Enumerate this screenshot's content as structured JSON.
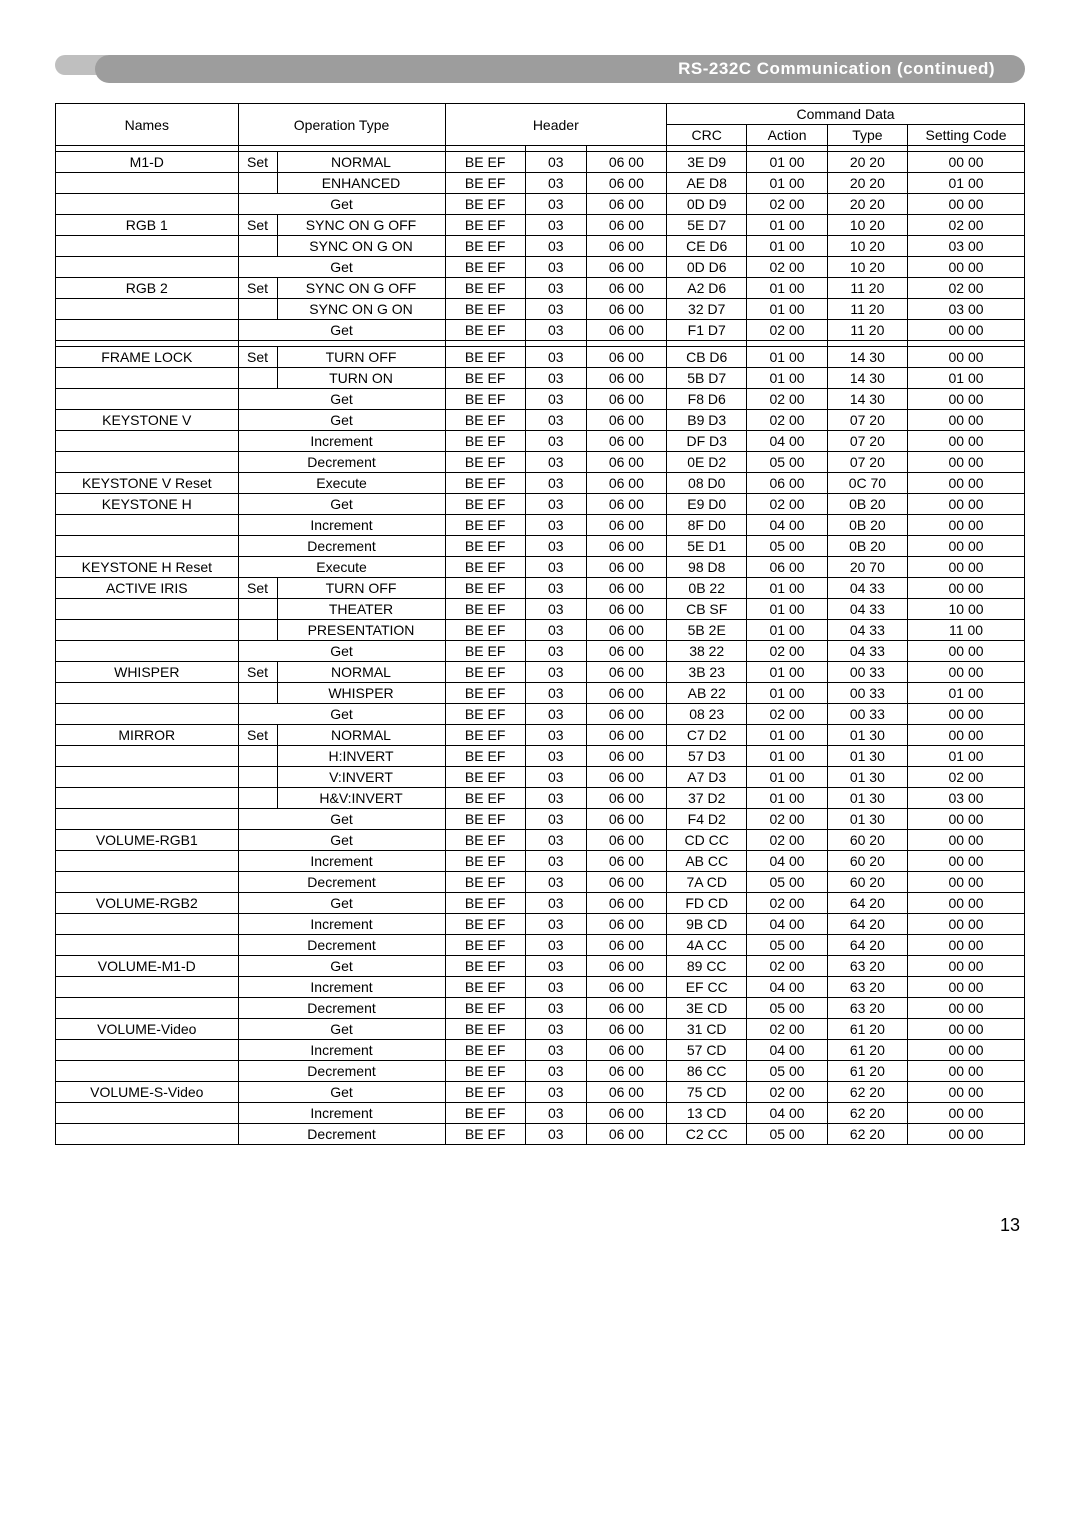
{
  "title": "RS-232C Communication (continued)",
  "page_number": "13",
  "head": {
    "names": "Names",
    "operation_type": "Operation Type",
    "header": "Header",
    "command_data": "Command Data",
    "crc": "CRC",
    "action": "Action",
    "type": "Type",
    "setting_code": "Setting Code"
  },
  "rows": [
    {
      "name": "M1-D",
      "set": "Set",
      "op": "NORMAL",
      "h1": "BE  EF",
      "h2": "03",
      "h3": "06  00",
      "crc": "3E D9",
      "action": "01 00",
      "type": "20 20",
      "setting": "00 00"
    },
    {
      "name": "",
      "set": "",
      "op": "ENHANCED",
      "h1": "BE  EF",
      "h2": "03",
      "h3": "06  00",
      "crc": "AE D8",
      "action": "01 00",
      "type": "20 20",
      "setting": "01 00"
    },
    {
      "name": "",
      "set": "",
      "op": "Get",
      "span": true,
      "h1": "BE  EF",
      "h2": "03",
      "h3": "06  00",
      "crc": "0D D9",
      "action": "02 00",
      "type": "20 20",
      "setting": "00 00"
    },
    {
      "name": "RGB 1",
      "set": "Set",
      "op": "SYNC ON G OFF",
      "h1": "BE  EF",
      "h2": "03",
      "h3": "06  00",
      "crc": "5E D7",
      "action": "01 00",
      "type": "10 20",
      "setting": "02 00"
    },
    {
      "name": "",
      "set": "",
      "op": "SYNC ON G ON",
      "h1": "BE  EF",
      "h2": "03",
      "h3": "06  00",
      "crc": "CE D6",
      "action": "01 00",
      "type": "10 20",
      "setting": "03 00"
    },
    {
      "name": "",
      "set": "",
      "op": "Get",
      "span": true,
      "h1": "BE  EF",
      "h2": "03",
      "h3": "06  00",
      "crc": "0D D6",
      "action": "02 00",
      "type": "10 20",
      "setting": "00 00"
    },
    {
      "name": "RGB 2",
      "set": "Set",
      "op": "SYNC ON G OFF",
      "h1": "BE  EF",
      "h2": "03",
      "h3": "06  00",
      "crc": "A2 D6",
      "action": "01 00",
      "type": "11 20",
      "setting": "02 00"
    },
    {
      "name": "",
      "set": "",
      "op": "SYNC ON G ON",
      "h1": "BE  EF",
      "h2": "03",
      "h3": "06  00",
      "crc": "32 D7",
      "action": "01 00",
      "type": "11 20",
      "setting": "03 00"
    },
    {
      "name": "",
      "set": "",
      "op": "Get",
      "span": true,
      "h1": "BE  EF",
      "h2": "03",
      "h3": "06  00",
      "crc": "F1 D7",
      "action": "02 00",
      "type": "11 20",
      "setting": "00 00"
    },
    {
      "gap": true
    },
    {
      "name": "FRAME LOCK",
      "set": "Set",
      "op": "TURN OFF",
      "h1": "BE  EF",
      "h2": "03",
      "h3": "06  00",
      "crc": "CB  D6",
      "action": "01  00",
      "type": "14  30",
      "setting": "00  00"
    },
    {
      "name": "",
      "set": "",
      "op": "TURN ON",
      "h1": "BE  EF",
      "h2": "03",
      "h3": "06  00",
      "crc": "5B  D7",
      "action": "01  00",
      "type": "14  30",
      "setting": "01  00"
    },
    {
      "name": "",
      "set": "",
      "op": "Get",
      "span": true,
      "h1": "BE  EF",
      "h2": "03",
      "h3": "06  00",
      "crc": "F8  D6",
      "action": "02  00",
      "type": "14  30",
      "setting": "00  00"
    },
    {
      "name": "KEYSTONE V",
      "set": "",
      "op": "Get",
      "span": true,
      "h1": "BE  EF",
      "h2": "03",
      "h3": "06  00",
      "crc": "B9  D3",
      "action": "02  00",
      "type": "07  20",
      "setting": "00  00"
    },
    {
      "name": "",
      "set": "",
      "op": "Increment",
      "span": true,
      "h1": "BE  EF",
      "h2": "03",
      "h3": "06  00",
      "crc": "DF  D3",
      "action": "04  00",
      "type": "07  20",
      "setting": "00  00"
    },
    {
      "name": "",
      "set": "",
      "op": "Decrement",
      "span": true,
      "h1": "BE  EF",
      "h2": "03",
      "h3": "06  00",
      "crc": "0E  D2",
      "action": "05  00",
      "type": "07  20",
      "setting": "00  00"
    },
    {
      "name": "KEYSTONE V Reset",
      "set": "",
      "op": "Execute",
      "span": true,
      "h1": "BE  EF",
      "h2": "03",
      "h3": "06  00",
      "crc": "08  D0",
      "action": "06  00",
      "type": "0C  70",
      "setting": "00  00"
    },
    {
      "name": "KEYSTONE H",
      "set": "",
      "op": "Get",
      "span": true,
      "h1": "BE  EF",
      "h2": "03",
      "h3": "06  00",
      "crc": "E9  D0",
      "action": "02  00",
      "type": "0B  20",
      "setting": "00  00"
    },
    {
      "name": "",
      "set": "",
      "op": "Increment",
      "span": true,
      "h1": "BE  EF",
      "h2": "03",
      "h3": "06  00",
      "crc": "8F  D0",
      "action": "04  00",
      "type": "0B  20",
      "setting": "00  00"
    },
    {
      "name": "",
      "set": "",
      "op": "Decrement",
      "span": true,
      "h1": "BE  EF",
      "h2": "03",
      "h3": "06  00",
      "crc": "5E  D1",
      "action": "05  00",
      "type": "0B  20",
      "setting": "00  00"
    },
    {
      "name": "KEYSTONE H Reset",
      "set": "",
      "op": "Execute",
      "span": true,
      "h1": "BE  EF",
      "h2": "03",
      "h3": "06  00",
      "crc": "98  D8",
      "action": "06  00",
      "type": "20  70",
      "setting": "00  00"
    },
    {
      "name": "ACTIVE IRIS",
      "set": "Set",
      "op": "TURN OFF",
      "h1": "BE  EF",
      "h2": "03",
      "h3": "06  00",
      "crc": "0B 22",
      "action": "01  00",
      "type": "04  33",
      "setting": "00  00"
    },
    {
      "name": "",
      "set": "",
      "op": "THEATER",
      "h1": "BE  EF",
      "h2": "03",
      "h3": "06  00",
      "crc": "CB SF",
      "action": "01  00",
      "type": "04  33",
      "setting": "10  00"
    },
    {
      "name": "",
      "set": "",
      "op": "PRESENTATION",
      "h1": "BE  EF",
      "h2": "03",
      "h3": "06  00",
      "crc": "5B 2E",
      "action": "01  00",
      "type": "04  33",
      "setting": "11  00"
    },
    {
      "name": "",
      "set": "",
      "op": "Get",
      "span": true,
      "h1": "BE  EF",
      "h2": "03",
      "h3": "06  00",
      "crc": "38 22",
      "action": "02  00",
      "type": "04  33",
      "setting": "00  00"
    },
    {
      "name": "WHISPER",
      "set": "Set",
      "op": "NORMAL",
      "h1": "BE  EF",
      "h2": "03",
      "h3": "06  00",
      "crc": "3B  23",
      "action": "01  00",
      "type": "00  33",
      "setting": "00  00"
    },
    {
      "name": "",
      "set": "",
      "op": "WHISPER",
      "h1": "BE  EF",
      "h2": "03",
      "h3": "06  00",
      "crc": "AB  22",
      "action": "01  00",
      "type": "00  33",
      "setting": "01  00"
    },
    {
      "name": "",
      "set": "",
      "op": "Get",
      "span": true,
      "h1": "BE  EF",
      "h2": "03",
      "h3": "06  00",
      "crc": "08  23",
      "action": "02  00",
      "type": "00  33",
      "setting": "00  00"
    },
    {
      "name": "MIRROR",
      "set": "Set",
      "op": "NORMAL",
      "h1": "BE  EF",
      "h2": "03",
      "h3": "06  00",
      "crc": "C7  D2",
      "action": "01  00",
      "type": "01  30",
      "setting": "00  00"
    },
    {
      "name": "",
      "set": "",
      "op": "H:INVERT",
      "h1": "BE  EF",
      "h2": "03",
      "h3": "06  00",
      "crc": "57  D3",
      "action": "01  00",
      "type": "01  30",
      "setting": "01  00"
    },
    {
      "name": "",
      "set": "",
      "op": "V:INVERT",
      "h1": "BE  EF",
      "h2": "03",
      "h3": "06  00",
      "crc": "A7  D3",
      "action": "01  00",
      "type": "01  30",
      "setting": "02  00"
    },
    {
      "name": "",
      "set": "",
      "op": "H&V:INVERT",
      "h1": "BE  EF",
      "h2": "03",
      "h3": "06  00",
      "crc": "37  D2",
      "action": "01  00",
      "type": "01  30",
      "setting": "03  00"
    },
    {
      "name": "",
      "set": "",
      "op": "Get",
      "span": true,
      "h1": "BE  EF",
      "h2": "03",
      "h3": "06  00",
      "crc": "F4  D2",
      "action": "02  00",
      "type": "01  30",
      "setting": "00  00"
    },
    {
      "name": "VOLUME-RGB1",
      "set": "",
      "op": "Get",
      "span": true,
      "h1": "BE  EF",
      "h2": "03",
      "h3": "06  00",
      "crc": "CD  CC",
      "action": "02  00",
      "type": "60  20",
      "setting": "00  00"
    },
    {
      "name": "",
      "set": "",
      "op": "Increment",
      "span": true,
      "h1": "BE  EF",
      "h2": "03",
      "h3": "06  00",
      "crc": "AB  CC",
      "action": "04  00",
      "type": "60  20",
      "setting": "00  00"
    },
    {
      "name": "",
      "set": "",
      "op": "Decrement",
      "span": true,
      "h1": "BE  EF",
      "h2": "03",
      "h3": "06  00",
      "crc": "7A  CD",
      "action": "05  00",
      "type": "60  20",
      "setting": "00  00"
    },
    {
      "name": "VOLUME-RGB2",
      "set": "",
      "op": "Get",
      "span": true,
      "h1": "BE  EF",
      "h2": "03",
      "h3": "06  00",
      "crc": "FD  CD",
      "action": "02  00",
      "type": "64  20",
      "setting": "00  00"
    },
    {
      "name": "",
      "set": "",
      "op": "Increment",
      "span": true,
      "h1": "BE  EF",
      "h2": "03",
      "h3": "06  00",
      "crc": "9B  CD",
      "action": "04  00",
      "type": "64  20",
      "setting": "00  00"
    },
    {
      "name": "",
      "set": "",
      "op": "Decrement",
      "span": true,
      "h1": "BE  EF",
      "h2": "03",
      "h3": "06  00",
      "crc": "4A  CC",
      "action": "05  00",
      "type": "64  20",
      "setting": "00  00"
    },
    {
      "name": "VOLUME-M1-D",
      "set": "",
      "op": "Get",
      "span": true,
      "h1": "BE  EF",
      "h2": "03",
      "h3": "06  00",
      "crc": "89  CC",
      "action": "02  00",
      "type": "63  20",
      "setting": "00  00"
    },
    {
      "name": "",
      "set": "",
      "op": "Increment",
      "span": true,
      "h1": "BE  EF",
      "h2": "03",
      "h3": "06  00",
      "crc": "EF  CC",
      "action": "04  00",
      "type": "63  20",
      "setting": "00  00"
    },
    {
      "name": "",
      "set": "",
      "op": "Decrement",
      "span": true,
      "h1": "BE  EF",
      "h2": "03",
      "h3": "06  00",
      "crc": "3E  CD",
      "action": "05  00",
      "type": "63  20",
      "setting": "00  00"
    },
    {
      "name": "VOLUME-Video",
      "set": "",
      "op": "Get",
      "span": true,
      "h1": "BE  EF",
      "h2": "03",
      "h3": "06  00",
      "crc": "31  CD",
      "action": "02  00",
      "type": "61  20",
      "setting": "00  00"
    },
    {
      "name": "",
      "set": "",
      "op": "Increment",
      "span": true,
      "h1": "BE  EF",
      "h2": "03",
      "h3": "06  00",
      "crc": "57  CD",
      "action": "04  00",
      "type": "61  20",
      "setting": "00  00"
    },
    {
      "name": "",
      "set": "",
      "op": "Decrement",
      "span": true,
      "h1": "BE  EF",
      "h2": "03",
      "h3": "06  00",
      "crc": "86  CC",
      "action": "05  00",
      "type": "61  20",
      "setting": "00  00"
    },
    {
      "name": "VOLUME-S-Video",
      "set": "",
      "op": "Get",
      "span": true,
      "h1": "BE  EF",
      "h2": "03",
      "h3": "06  00",
      "crc": "75  CD",
      "action": "02  00",
      "type": "62  20",
      "setting": "00  00"
    },
    {
      "name": "",
      "set": "",
      "op": "Increment",
      "span": true,
      "h1": "BE  EF",
      "h2": "03",
      "h3": "06  00",
      "crc": "13  CD",
      "action": "04  00",
      "type": "62  20",
      "setting": "00  00"
    },
    {
      "name": "",
      "set": "",
      "op": "Decrement",
      "span": true,
      "h1": "BE  EF",
      "h2": "03",
      "h3": "06  00",
      "crc": "C2  CC",
      "action": "05  00",
      "type": "62  20",
      "setting": "00  00"
    }
  ]
}
